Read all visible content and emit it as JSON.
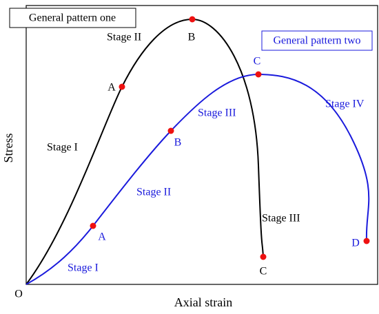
{
  "legend": {
    "pattern_one": "General pattern one",
    "pattern_two": "General pattern two"
  },
  "axes": {
    "x_label": "Axial strain",
    "y_label": "Stress",
    "origin": "O"
  },
  "pattern_one": {
    "stage_1": "Stage I",
    "stage_2": "Stage II",
    "stage_3": "Stage III",
    "point_a": "A",
    "point_b": "B",
    "point_c": "C"
  },
  "pattern_two": {
    "stage_1": "Stage I",
    "stage_2": "Stage II",
    "stage_3": "Stage III",
    "stage_4": "Stage IV",
    "point_a": "A",
    "point_b": "B",
    "point_c": "C",
    "point_d": "D"
  }
}
